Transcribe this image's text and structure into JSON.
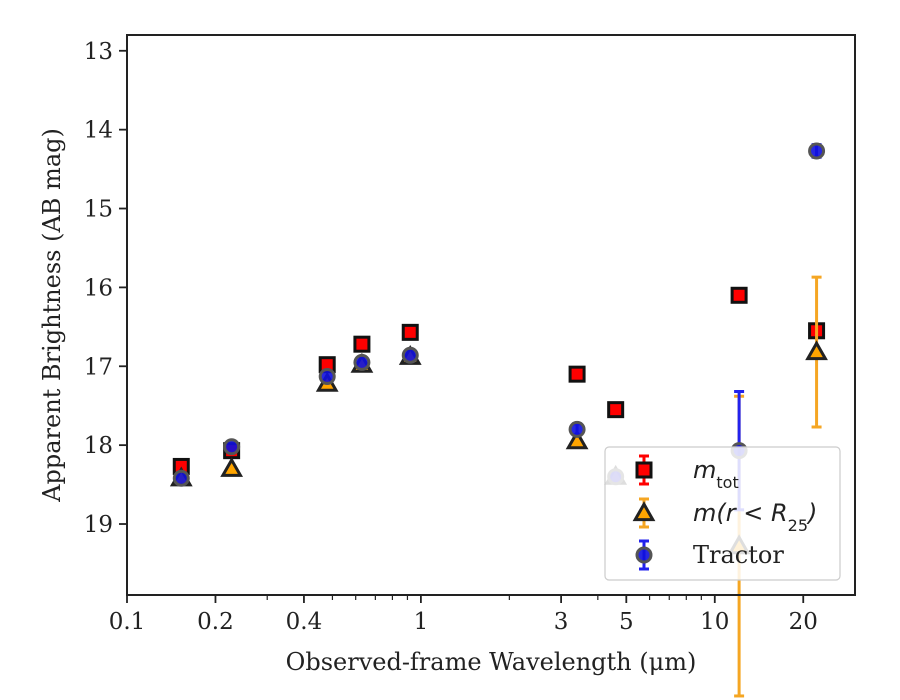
{
  "chart_data": {
    "type": "scatter",
    "title": "",
    "xlabel": "Observed-frame Wavelength (μm)",
    "ylabel": "Apparent Brightness (AB mag)",
    "xscale": "log",
    "xlim": [
      0.1,
      30
    ],
    "ylim": [
      19.9,
      12.8
    ],
    "y_inverted": true,
    "xticks": [
      {
        "value": 0.1,
        "label": "0.1"
      },
      {
        "value": 0.2,
        "label": "0.2"
      },
      {
        "value": 0.4,
        "label": "0.4"
      },
      {
        "value": 1,
        "label": "1"
      },
      {
        "value": 3,
        "label": "3"
      },
      {
        "value": 5,
        "label": "5"
      },
      {
        "value": 10,
        "label": "10"
      },
      {
        "value": 20,
        "label": "20"
      }
    ],
    "yticks": [
      {
        "value": 13,
        "label": "13"
      },
      {
        "value": 14,
        "label": "14"
      },
      {
        "value": 15,
        "label": "15"
      },
      {
        "value": 16,
        "label": "16"
      },
      {
        "value": 17,
        "label": "17"
      },
      {
        "value": 18,
        "label": "18"
      },
      {
        "value": 19,
        "label": "19"
      }
    ],
    "grid": false,
    "legend_position": "lower-right",
    "series": [
      {
        "name": "m_tot",
        "label_main": "m",
        "label_sub": "tot",
        "marker": "square",
        "color": "#ff0000",
        "edgecolor": "#111111",
        "errcolor": "#ff0000",
        "points": [
          {
            "x": 0.153,
            "y": 18.27,
            "err": 0.05
          },
          {
            "x": 0.227,
            "y": 18.07,
            "err": 0.05
          },
          {
            "x": 0.48,
            "y": 16.98,
            "err": 0.03
          },
          {
            "x": 0.63,
            "y": 16.72,
            "err": 0.03
          },
          {
            "x": 0.92,
            "y": 16.57,
            "err": 0.03
          },
          {
            "x": 3.4,
            "y": 17.1,
            "err": 0.03
          },
          {
            "x": 4.6,
            "y": 17.55,
            "err": 0.03
          },
          {
            "x": 12.1,
            "y": 16.1,
            "err": 0.03
          },
          {
            "x": 22.2,
            "y": 16.55,
            "err": 0.05
          }
        ]
      },
      {
        "name": "m(r < R25)",
        "label_main": "m(r < R",
        "label_sub": "25",
        "label_tail": ")",
        "marker": "triangle",
        "color": "#ffa500",
        "edgecolor": "#222222",
        "errcolor": "#f5a623",
        "points": [
          {
            "x": 0.153,
            "y": 18.42,
            "err": 0.04
          },
          {
            "x": 0.227,
            "y": 18.3,
            "err": 0.04
          },
          {
            "x": 0.48,
            "y": 17.22,
            "err": 0.03
          },
          {
            "x": 0.63,
            "y": 16.98,
            "err": 0.03
          },
          {
            "x": 0.92,
            "y": 16.88,
            "err": 0.03
          },
          {
            "x": 3.4,
            "y": 17.95,
            "err": 0.03
          },
          {
            "x": 4.6,
            "y": 18.4,
            "err": 0.03
          },
          {
            "x": 12.1,
            "y": 19.28,
            "err": 1.9
          },
          {
            "x": 22.2,
            "y": 16.82,
            "err": 0.95
          }
        ]
      },
      {
        "name": "Tractor",
        "label_main": "Tractor",
        "marker": "circle",
        "color": "#1010dd",
        "edgecolor": "#555555",
        "errcolor": "#2222ee",
        "points": [
          {
            "x": 0.153,
            "y": 18.42,
            "err": 0.04
          },
          {
            "x": 0.227,
            "y": 18.02,
            "err": 0.06
          },
          {
            "x": 0.48,
            "y": 17.13,
            "err": 0.05
          },
          {
            "x": 0.63,
            "y": 16.95,
            "err": 0.04
          },
          {
            "x": 0.92,
            "y": 16.86,
            "err": 0.05
          },
          {
            "x": 3.4,
            "y": 17.8,
            "err": 0.07
          },
          {
            "x": 4.6,
            "y": 18.4,
            "err": 0.05
          },
          {
            "x": 12.1,
            "y": 18.07,
            "err": 0.75
          },
          {
            "x": 22.2,
            "y": 14.27,
            "err": 0.08
          }
        ]
      }
    ]
  }
}
